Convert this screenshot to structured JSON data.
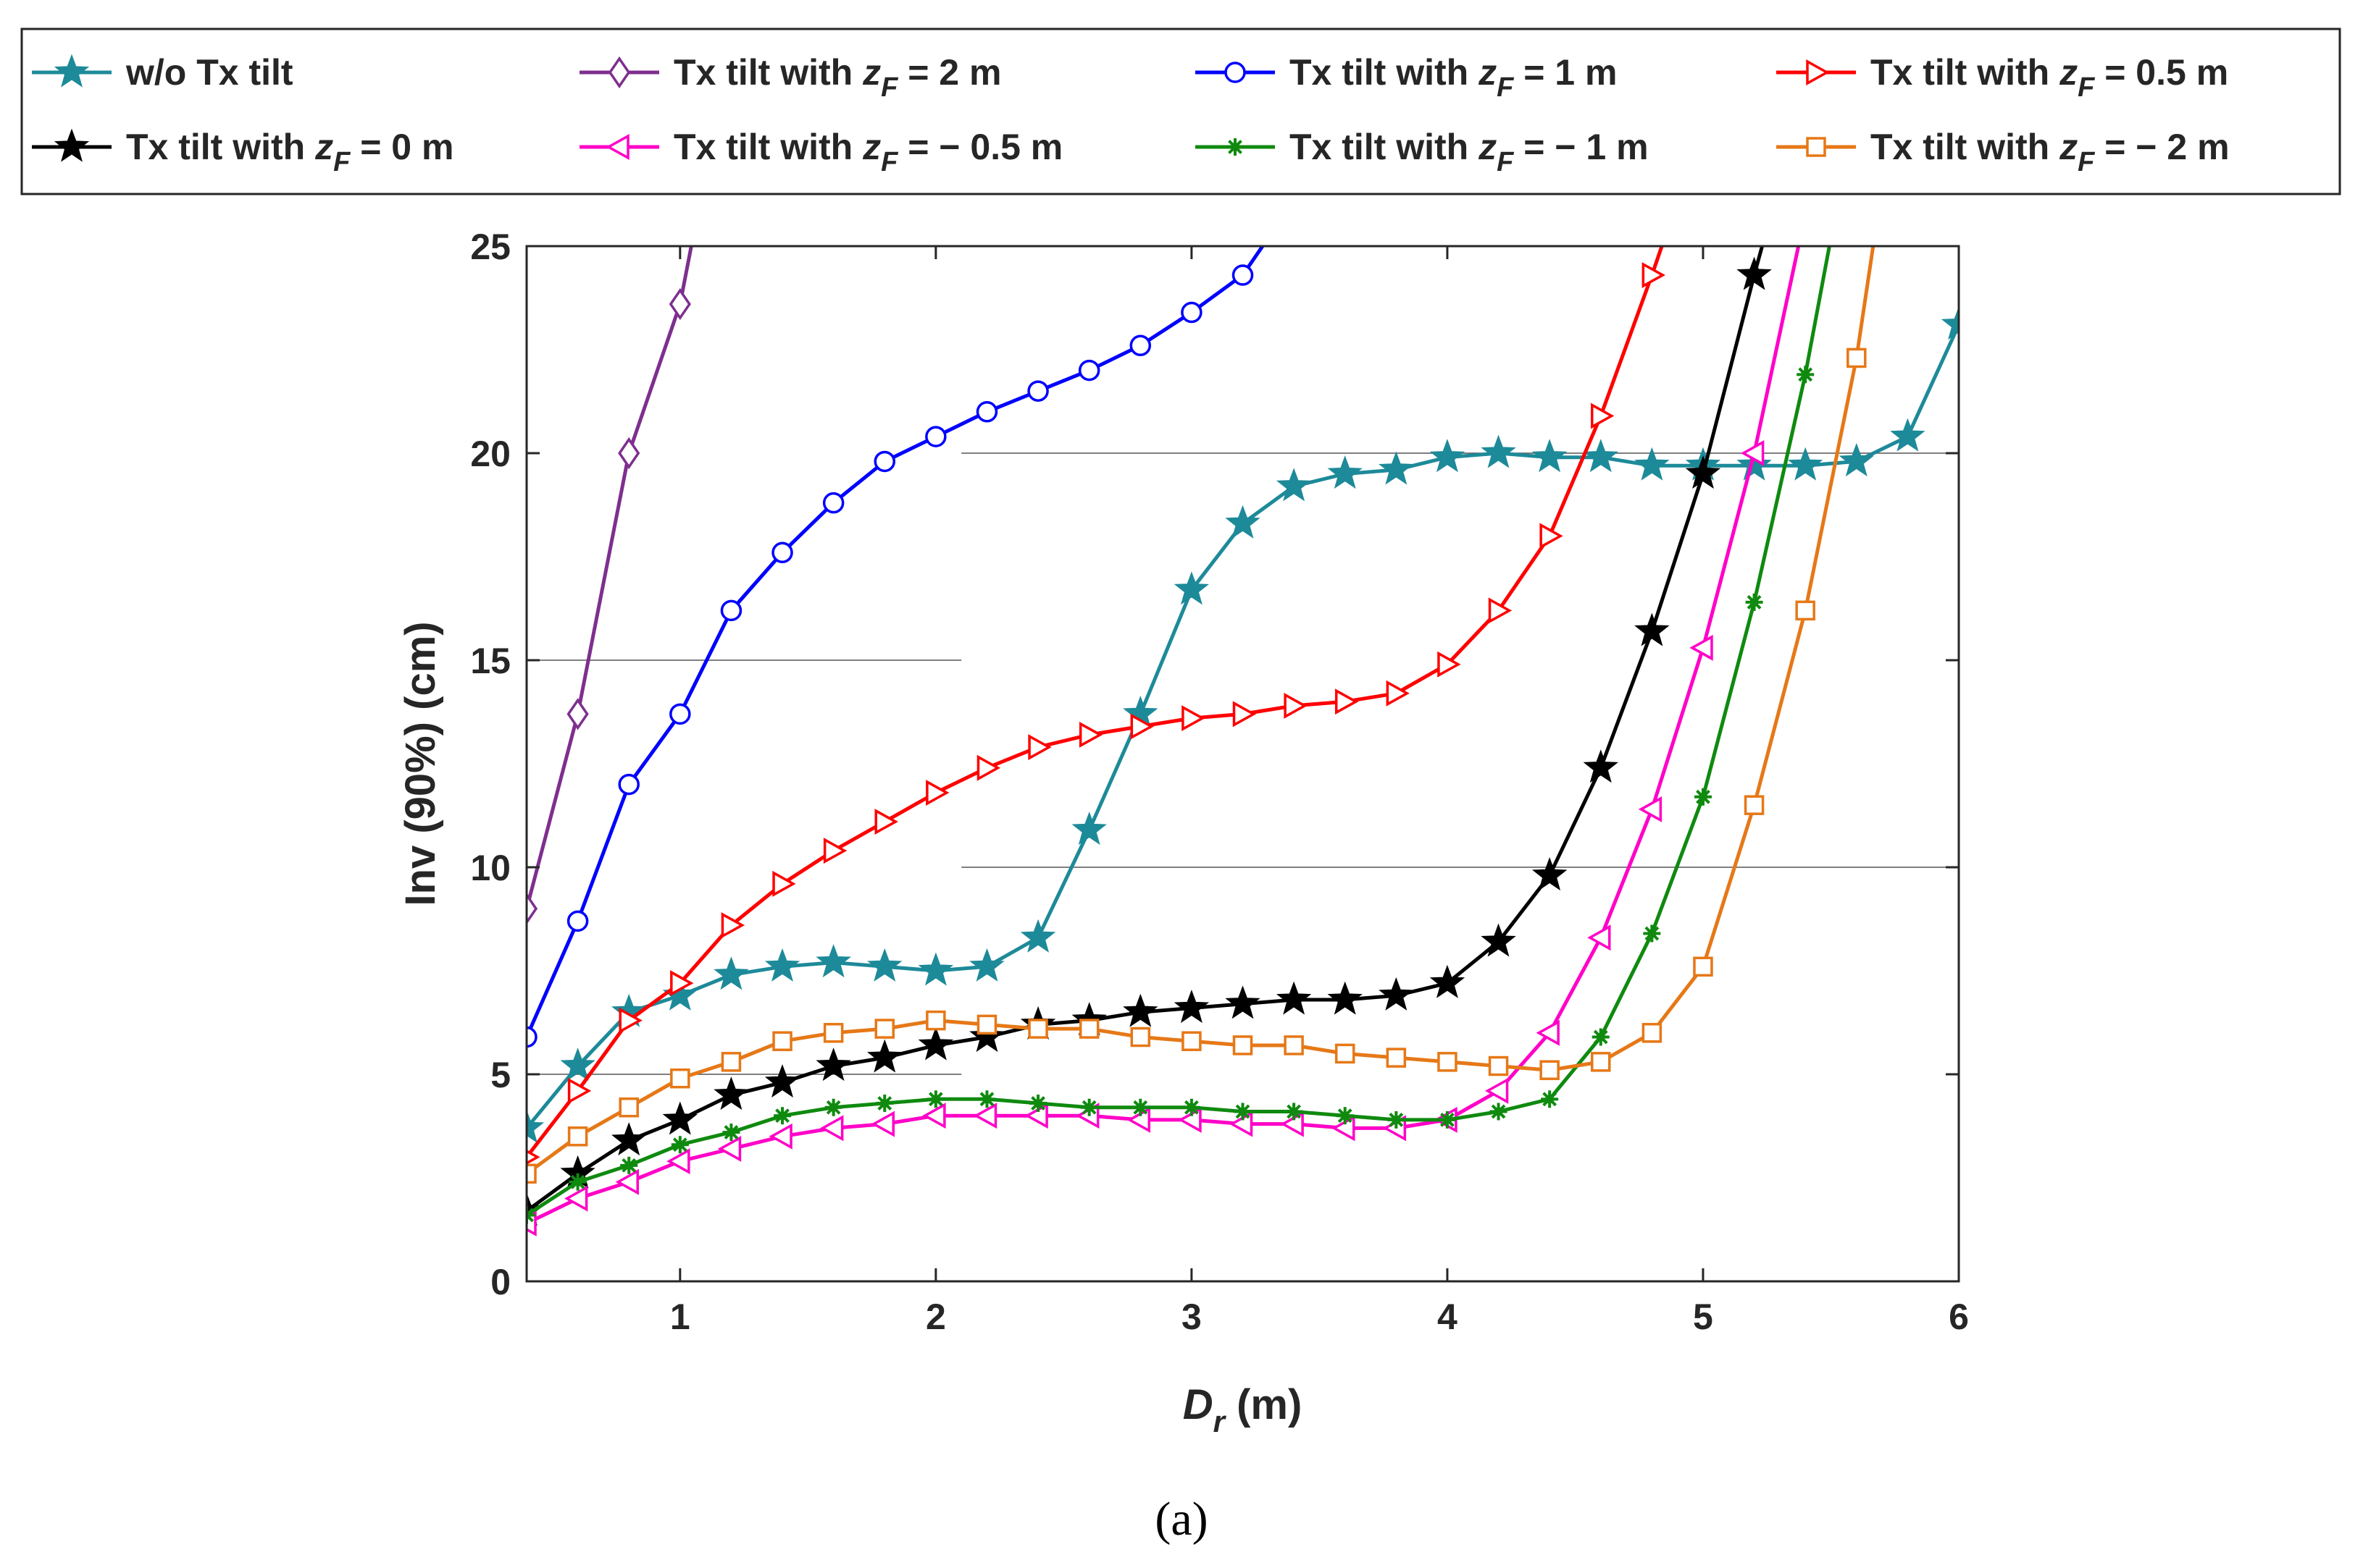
{
  "chart_data": {
    "type": "line",
    "caption": "(a)",
    "xlabel": {
      "main": "D",
      "sub": "r",
      "unit": " (m)"
    },
    "ylabel": "Inv (90%) (cm)",
    "xlim": [
      0.4,
      6
    ],
    "ylim": [
      0,
      25
    ],
    "xticks": [
      1,
      2,
      3,
      4,
      5,
      6
    ],
    "yticks": [
      0,
      5,
      10,
      15,
      20,
      25
    ],
    "series": [
      {
        "name": "w/o Tx tilt",
        "label": "w/o Tx tilt",
        "z": "",
        "color": "#1d8a99",
        "marker": "star",
        "points": [
          [
            0.4,
            3.7
          ],
          [
            0.6,
            5.2
          ],
          [
            0.8,
            6.5
          ],
          [
            1.0,
            6.9
          ],
          [
            1.2,
            7.4
          ],
          [
            1.4,
            7.6
          ],
          [
            1.6,
            7.7
          ],
          [
            1.8,
            7.6
          ],
          [
            2.0,
            7.5
          ],
          [
            2.2,
            7.6
          ],
          [
            2.4,
            8.3
          ],
          [
            2.6,
            10.9
          ],
          [
            2.8,
            13.7
          ],
          [
            3.0,
            16.7
          ],
          [
            3.2,
            18.3
          ],
          [
            3.4,
            19.2
          ],
          [
            3.6,
            19.5
          ],
          [
            3.8,
            19.6
          ],
          [
            4.0,
            19.9
          ],
          [
            4.2,
            20.0
          ],
          [
            4.4,
            19.9
          ],
          [
            4.6,
            19.9
          ],
          [
            4.8,
            19.7
          ],
          [
            5.0,
            19.7
          ],
          [
            5.2,
            19.7
          ],
          [
            5.4,
            19.7
          ],
          [
            5.6,
            19.8
          ],
          [
            5.8,
            20.4
          ],
          [
            6.0,
            23.1
          ]
        ]
      },
      {
        "name": "Tx tilt with zF = 2 m",
        "label": "Tx tilt with ",
        "z": " = 2 m",
        "color": "#7e2f8e",
        "marker": "diamond",
        "points": [
          [
            0.4,
            9.0
          ],
          [
            0.6,
            13.7
          ],
          [
            0.8,
            20.0
          ],
          [
            1.0,
            23.6
          ],
          [
            1.05,
            25.2
          ]
        ]
      },
      {
        "name": "Tx tilt with zF = 1 m",
        "label": "Tx tilt with ",
        "z": " = 1 m",
        "color": "#0000ff",
        "marker": "circle",
        "points": [
          [
            0.4,
            5.9
          ],
          [
            0.6,
            8.7
          ],
          [
            0.8,
            12.0
          ],
          [
            1.0,
            13.7
          ],
          [
            1.2,
            16.2
          ],
          [
            1.4,
            17.6
          ],
          [
            1.6,
            18.8
          ],
          [
            1.8,
            19.8
          ],
          [
            2.0,
            20.4
          ],
          [
            2.2,
            21.0
          ],
          [
            2.4,
            21.5
          ],
          [
            2.6,
            22.0
          ],
          [
            2.8,
            22.6
          ],
          [
            3.0,
            23.4
          ],
          [
            3.2,
            24.3
          ],
          [
            3.3,
            25.2
          ]
        ]
      },
      {
        "name": "Tx tilt with zF = 0.5 m",
        "label": "Tx tilt with ",
        "z": " = 0.5 m",
        "color": "#ff0000",
        "marker": "triangle-right",
        "points": [
          [
            0.4,
            3.0
          ],
          [
            0.6,
            4.6
          ],
          [
            0.8,
            6.3
          ],
          [
            1.0,
            7.2
          ],
          [
            1.2,
            8.6
          ],
          [
            1.4,
            9.6
          ],
          [
            1.6,
            10.4
          ],
          [
            1.8,
            11.1
          ],
          [
            2.0,
            11.8
          ],
          [
            2.2,
            12.4
          ],
          [
            2.4,
            12.9
          ],
          [
            2.6,
            13.2
          ],
          [
            2.8,
            13.4
          ],
          [
            3.0,
            13.6
          ],
          [
            3.2,
            13.7
          ],
          [
            3.4,
            13.9
          ],
          [
            3.6,
            14.0
          ],
          [
            3.8,
            14.2
          ],
          [
            4.0,
            14.9
          ],
          [
            4.2,
            16.2
          ],
          [
            4.4,
            18.0
          ],
          [
            4.6,
            20.9
          ],
          [
            4.8,
            24.3
          ],
          [
            4.85,
            25.2
          ]
        ]
      },
      {
        "name": "Tx tilt with zF = 0 m",
        "label": "Tx tilt with ",
        "z": " = 0 m",
        "color": "#000000",
        "marker": "star",
        "points": [
          [
            0.4,
            1.7
          ],
          [
            0.6,
            2.6
          ],
          [
            0.8,
            3.4
          ],
          [
            1.0,
            3.9
          ],
          [
            1.2,
            4.5
          ],
          [
            1.4,
            4.8
          ],
          [
            1.6,
            5.2
          ],
          [
            1.8,
            5.4
          ],
          [
            2.0,
            5.7
          ],
          [
            2.2,
            5.9
          ],
          [
            2.4,
            6.2
          ],
          [
            2.6,
            6.3
          ],
          [
            2.8,
            6.5
          ],
          [
            3.0,
            6.6
          ],
          [
            3.2,
            6.7
          ],
          [
            3.4,
            6.8
          ],
          [
            3.6,
            6.8
          ],
          [
            3.8,
            6.9
          ],
          [
            4.0,
            7.2
          ],
          [
            4.2,
            8.2
          ],
          [
            4.4,
            9.8
          ],
          [
            4.6,
            12.4
          ],
          [
            4.8,
            15.7
          ],
          [
            5.0,
            19.5
          ],
          [
            5.2,
            24.3
          ],
          [
            5.24,
            25.2
          ]
        ]
      },
      {
        "name": "Tx tilt with zF = -0.5 m",
        "label": "Tx tilt with ",
        "z": " = − 0.5 m",
        "color": "#ff00c8",
        "marker": "triangle-left",
        "points": [
          [
            0.4,
            1.4
          ],
          [
            0.6,
            2.0
          ],
          [
            0.8,
            2.4
          ],
          [
            1.0,
            2.9
          ],
          [
            1.2,
            3.2
          ],
          [
            1.4,
            3.5
          ],
          [
            1.6,
            3.7
          ],
          [
            1.8,
            3.8
          ],
          [
            2.0,
            4.0
          ],
          [
            2.2,
            4.0
          ],
          [
            2.4,
            4.0
          ],
          [
            2.6,
            4.0
          ],
          [
            2.8,
            3.9
          ],
          [
            3.0,
            3.9
          ],
          [
            3.2,
            3.8
          ],
          [
            3.4,
            3.8
          ],
          [
            3.6,
            3.7
          ],
          [
            3.8,
            3.7
          ],
          [
            4.0,
            3.9
          ],
          [
            4.2,
            4.6
          ],
          [
            4.4,
            6.0
          ],
          [
            4.6,
            8.3
          ],
          [
            4.8,
            11.4
          ],
          [
            5.0,
            15.3
          ],
          [
            5.2,
            20.0
          ],
          [
            5.38,
            25.2
          ]
        ]
      },
      {
        "name": "Tx tilt with zF = -1 m",
        "label": "Tx tilt with ",
        "z": " = − 1 m",
        "color": "#0f8a0f",
        "marker": "asterisk",
        "points": [
          [
            0.4,
            1.6
          ],
          [
            0.6,
            2.4
          ],
          [
            0.8,
            2.8
          ],
          [
            1.0,
            3.3
          ],
          [
            1.2,
            3.6
          ],
          [
            1.4,
            4.0
          ],
          [
            1.6,
            4.2
          ],
          [
            1.8,
            4.3
          ],
          [
            2.0,
            4.4
          ],
          [
            2.2,
            4.4
          ],
          [
            2.4,
            4.3
          ],
          [
            2.6,
            4.2
          ],
          [
            2.8,
            4.2
          ],
          [
            3.0,
            4.2
          ],
          [
            3.2,
            4.1
          ],
          [
            3.4,
            4.1
          ],
          [
            3.6,
            4.0
          ],
          [
            3.8,
            3.9
          ],
          [
            4.0,
            3.9
          ],
          [
            4.2,
            4.1
          ],
          [
            4.4,
            4.4
          ],
          [
            4.6,
            5.9
          ],
          [
            4.8,
            8.4
          ],
          [
            5.0,
            11.7
          ],
          [
            5.2,
            16.4
          ],
          [
            5.4,
            21.9
          ],
          [
            5.5,
            25.2
          ]
        ]
      },
      {
        "name": "Tx tilt with zF = -2 m",
        "label": "Tx tilt with ",
        "z": " = − 2 m",
        "color": "#e67817",
        "marker": "square",
        "points": [
          [
            0.4,
            2.6
          ],
          [
            0.6,
            3.5
          ],
          [
            0.8,
            4.2
          ],
          [
            1.0,
            4.9
          ],
          [
            1.2,
            5.3
          ],
          [
            1.4,
            5.8
          ],
          [
            1.6,
            6.0
          ],
          [
            1.8,
            6.1
          ],
          [
            2.0,
            6.3
          ],
          [
            2.2,
            6.2
          ],
          [
            2.4,
            6.1
          ],
          [
            2.6,
            6.1
          ],
          [
            2.8,
            5.9
          ],
          [
            3.0,
            5.8
          ],
          [
            3.2,
            5.7
          ],
          [
            3.4,
            5.7
          ],
          [
            3.6,
            5.5
          ],
          [
            3.8,
            5.4
          ],
          [
            4.0,
            5.3
          ],
          [
            4.2,
            5.2
          ],
          [
            4.4,
            5.1
          ],
          [
            4.6,
            5.3
          ],
          [
            4.8,
            6.0
          ],
          [
            5.0,
            7.6
          ],
          [
            5.2,
            11.5
          ],
          [
            5.4,
            16.2
          ],
          [
            5.6,
            22.3
          ],
          [
            5.67,
            25.2
          ]
        ]
      }
    ],
    "reference_lines": [
      {
        "y": 5,
        "x_from": 0.4,
        "x_to": 2.1
      },
      {
        "y": 10,
        "x_from": 2.1,
        "x_to": 6
      },
      {
        "y": 15,
        "x_from": 0.4,
        "x_to": 2.1
      },
      {
        "y": 20,
        "x_from": 2.1,
        "x_to": 6
      }
    ]
  }
}
